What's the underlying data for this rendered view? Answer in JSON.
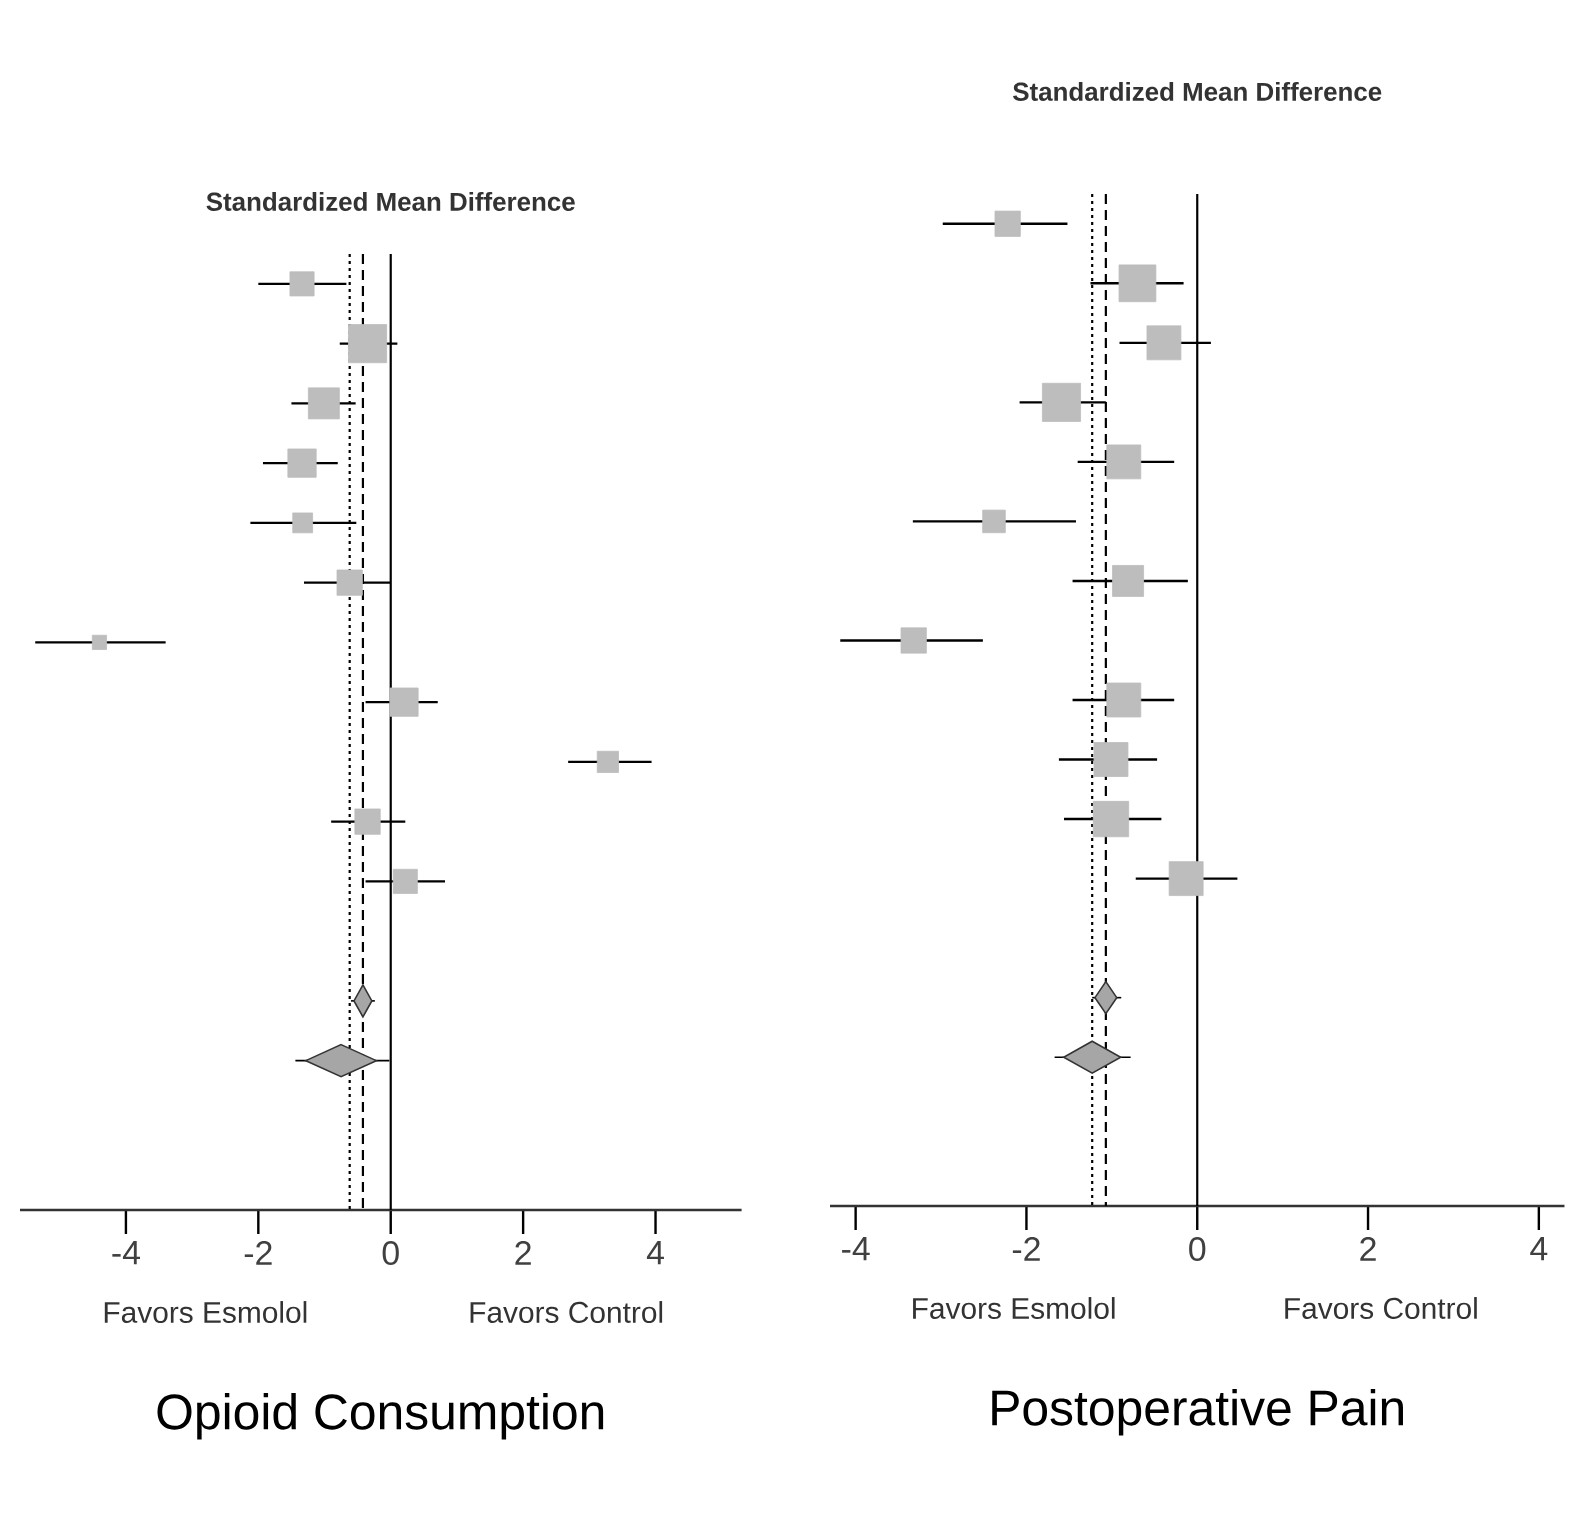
{
  "chart_data": [
    {
      "type": "bubble",
      "orientation": "horizontal",
      "marker": "square",
      "title": "Standardized Mean Difference",
      "xlabel": "Opioid Consumption",
      "annotations": [
        "Favors Esmolol",
        "Favors Control"
      ],
      "categories": [
        null,
        null,
        null,
        null,
        null,
        null,
        null,
        null,
        null,
        null,
        null,
        null,
        null,
        null,
        null,
        null
      ],
      "xlim": [
        -5.6,
        5.3
      ],
      "xticks": [
        -4,
        -2,
        0,
        2,
        4
      ],
      "ref_lines": [
        {
          "axis": "x",
          "value": 0,
          "line_style": "solid",
          "color": "#000000"
        },
        {
          "axis": "x",
          "value": -0.62,
          "line_style": "dotted",
          "color": "#000000"
        },
        {
          "axis": "x",
          "value": -0.42,
          "line_style": "dashed",
          "color": "#000000"
        }
      ],
      "series": [
        {
          "color": "#bdbdbd",
          "values": [
            -1.34,
            -0.35,
            -1.01,
            -1.34,
            -1.33,
            -0.62,
            -4.4,
            0.2,
            3.28,
            -0.35,
            0.22,
            null,
            null,
            null,
            null,
            null
          ],
          "errors": [
            [
              -2.0,
              -0.67
            ],
            [
              -0.77,
              0.1
            ],
            [
              -1.5,
              -0.53
            ],
            [
              -1.93,
              -0.8
            ],
            [
              -2.12,
              -0.52
            ],
            [
              -1.31,
              0.0
            ],
            [
              -5.37,
              -3.4
            ],
            [
              -0.38,
              0.71
            ],
            [
              2.68,
              3.94
            ],
            [
              -0.9,
              0.22
            ],
            [
              -0.38,
              0.82
            ],
            null,
            null,
            null,
            null,
            null
          ],
          "sizes": [
            0.4,
            1,
            0.66,
            0.55,
            0.27,
            0.44,
            0.14,
            0.55,
            0.31,
            0.44,
            0.4,
            null,
            null,
            null,
            null,
            null
          ]
        },
        {
          "type": "scatter",
          "marker": "diamond",
          "color": "#a6a6a6",
          "values": [
            null,
            null,
            null,
            null,
            null,
            null,
            null,
            null,
            null,
            null,
            null,
            null,
            -0.42,
            -0.75,
            null,
            null
          ],
          "errors": [
            null,
            null,
            null,
            null,
            null,
            null,
            null,
            null,
            null,
            null,
            null,
            null,
            [
              -0.6,
              -0.24
            ],
            [
              -1.44,
              -0.02
            ],
            null,
            null
          ]
        }
      ]
    },
    {
      "type": "bubble",
      "orientation": "horizontal",
      "marker": "square",
      "title": "Standardized Mean Difference",
      "xlabel": "Postoperative Pain",
      "annotations": [
        "Favors Esmolol",
        "Favors Control"
      ],
      "categories": [
        null,
        null,
        null,
        null,
        null,
        null,
        null,
        null,
        null,
        null,
        null,
        null,
        null,
        null,
        null,
        null,
        null
      ],
      "xlim": [
        -4.3,
        4.3
      ],
      "xticks": [
        -4,
        -2,
        0,
        2,
        4
      ],
      "ref_lines": [
        {
          "axis": "x",
          "value": 0,
          "line_style": "solid",
          "color": "#000000"
        },
        {
          "axis": "x",
          "value": -1.23,
          "line_style": "dotted",
          "color": "#000000"
        },
        {
          "axis": "x",
          "value": -1.07,
          "line_style": "dashed",
          "color": "#000000"
        }
      ],
      "series": [
        {
          "color": "#bdbdbd",
          "values": [
            -2.22,
            -0.7,
            -0.39,
            -1.59,
            -0.86,
            -2.38,
            -0.81,
            -3.32,
            -0.86,
            -1.01,
            -1.01,
            -0.13,
            null,
            null,
            null,
            null,
            null
          ],
          "errors": [
            [
              -2.98,
              -1.52
            ],
            [
              -1.25,
              -0.16
            ],
            [
              -0.91,
              0.16
            ],
            [
              -2.08,
              -1.07
            ],
            [
              -1.4,
              -0.27
            ],
            [
              -3.33,
              -1.42
            ],
            [
              -1.46,
              -0.11
            ],
            [
              -4.18,
              -2.51
            ],
            [
              -1.46,
              -0.27
            ],
            [
              -1.62,
              -0.47
            ],
            [
              -1.56,
              -0.42
            ],
            [
              -0.72,
              0.47
            ],
            null,
            null,
            null,
            null,
            null
          ],
          "sizes": [
            0.44,
            0.93,
            0.79,
            1,
            0.79,
            0.35,
            0.66,
            0.44,
            0.79,
            0.79,
            0.86,
            0.79,
            null,
            null,
            null,
            null,
            null
          ]
        },
        {
          "type": "scatter",
          "marker": "diamond",
          "color": "#a6a6a6",
          "values": [
            null,
            null,
            null,
            null,
            null,
            null,
            null,
            null,
            null,
            null,
            null,
            null,
            null,
            -1.07,
            -1.23,
            null,
            null
          ],
          "errors": [
            null,
            null,
            null,
            null,
            null,
            null,
            null,
            null,
            null,
            null,
            null,
            null,
            null,
            [
              -1.23,
              -0.89
            ],
            [
              -1.67,
              -0.78
            ],
            null,
            null
          ]
        }
      ]
    }
  ]
}
